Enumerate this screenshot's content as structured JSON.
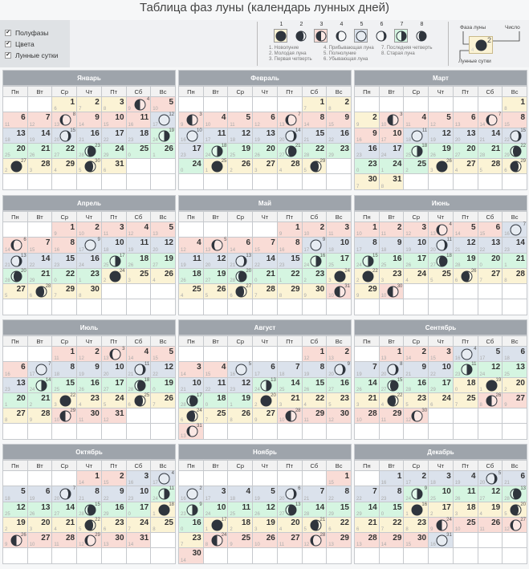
{
  "title": "Таблица фаз луны (календарь лунных дней)",
  "controls": {
    "checkboxes": [
      {
        "label": "Полуфазы",
        "checked": true
      },
      {
        "label": "Цвета",
        "checked": true
      },
      {
        "label": "Лунные сутки",
        "checked": true
      }
    ]
  },
  "legend": {
    "phases": [
      {
        "num": "1",
        "phase": 1,
        "box": "#fbf3d5"
      },
      {
        "num": "2",
        "phase": 2,
        "box": ""
      },
      {
        "num": "3",
        "phase": 3,
        "box": "#f9dcd6"
      },
      {
        "num": "4",
        "phase": 4,
        "box": ""
      },
      {
        "num": "5",
        "phase": 5,
        "box": "#dbe2ec"
      },
      {
        "num": "6",
        "phase": 6,
        "box": ""
      },
      {
        "num": "7",
        "phase": 7,
        "box": "#d5f5e1"
      },
      {
        "num": "8",
        "phase": 8,
        "box": ""
      }
    ],
    "labels": [
      "1. Новолуние",
      "4. Прибывающая луна",
      "7. Последняя четверть",
      "2. Молодая луна",
      "5. Полнолуние",
      "8. Старая луна",
      "3. Первая четверть",
      "6. Убывающая луна",
      ""
    ]
  },
  "key": {
    "phase_label": "Фаза луны",
    "number_label": "Число",
    "lunar_label": "Лунные сутки",
    "number": "2",
    "lunar": "4"
  },
  "colors": {
    "y": "#fbf3d5",
    "r": "#f9dcd6",
    "b": "#dbe2ec",
    "g": "#d5f5e1",
    "moon": "#2f353d"
  },
  "weekdays": [
    "Пн",
    "Вт",
    "Ср",
    "Чт",
    "Пт",
    "Сб",
    "Вс"
  ],
  "months": [
    {
      "name": "Январь",
      "start": 2,
      "colors": "yyyrrrrrrrrbbbbbbbggggggggyyyyy",
      "lunar": [
        6,
        7,
        8,
        9,
        10,
        11,
        12,
        13,
        14,
        15,
        16,
        17,
        18,
        19,
        20,
        21,
        22,
        23,
        24,
        25,
        26,
        27,
        28,
        29,
        0,
        1,
        2,
        3,
        4,
        5,
        6
      ],
      "phases": {
        "4": 3,
        "8": 4,
        "12": 5,
        "15": 6,
        "19": 7,
        "23": 8,
        "27": 1,
        "30": 2
      }
    },
    {
      "name": "Февраль",
      "start": 5,
      "colors": "yyrrrrrrrbbbbbbbbgggggggyyyyy",
      "lunar": [
        7,
        8,
        9,
        10,
        11,
        12,
        13,
        14,
        15,
        16,
        17,
        18,
        19,
        20,
        21,
        22,
        23,
        24,
        25,
        26,
        27,
        28,
        29,
        0,
        1,
        2,
        3,
        4,
        5
      ],
      "phases": {
        "3": 3,
        "7": 4,
        "10": 5,
        "14": 6,
        "18": 7,
        "21": 8,
        "25": 1,
        "29": 2
      }
    },
    {
      "name": "Март",
      "start": 6,
      "colors": "yyrrrrrrrrbbbbbbbggggggggyyyyyy",
      "lunar": [
        8,
        9,
        10,
        11,
        12,
        13,
        14,
        15,
        16,
        17,
        18,
        19,
        20,
        21,
        22,
        23,
        24,
        25,
        26,
        27,
        28,
        29,
        0,
        1,
        2,
        3,
        4,
        5,
        6,
        7,
        8
      ],
      "phases": {
        "3": 3,
        "7": 4,
        "11": 5,
        "15": 6,
        "18": 7,
        "22": 8,
        "26": 1,
        "29": 2
      }
    },
    {
      "name": "Апрель",
      "start": 2,
      "colors": "rrrrrrrrbbbbbbbbgggggggyyyyyyy",
      "lunar": [
        9,
        10,
        11,
        12,
        13,
        14,
        15,
        16,
        17,
        18,
        19,
        20,
        21,
        22,
        23,
        24,
        25,
        26,
        27,
        28,
        29,
        0,
        1,
        2,
        3,
        4,
        5,
        6,
        7,
        8
      ],
      "phases": {
        "6": 4,
        "9": 5,
        "13": 6,
        "17": 7,
        "20": 8,
        "24": 1,
        "28": 2
      }
    },
    {
      "name": "Май",
      "start": 4,
      "colors": "rrrrrrrrbbbbbbbggggggggyyyyyyyr",
      "lunar": [
        9,
        10,
        11,
        12,
        13,
        14,
        15,
        16,
        17,
        18,
        19,
        20,
        21,
        22,
        23,
        24,
        25,
        26,
        27,
        28,
        0,
        1,
        2,
        3,
        4,
        5,
        6,
        7,
        8,
        9,
        10
      ],
      "phases": {
        "5": 4,
        "9": 5,
        "13": 6,
        "16": 7,
        "20": 8,
        "24": 1,
        "27": 2,
        "31": 3
      }
    },
    {
      "name": "Июнь",
      "start": 0,
      "colors": "rrrrrrbbbbbbbbgggggggyyyyyyyyr",
      "lunar": [
        10,
        11,
        12,
        13,
        14,
        15,
        16,
        17,
        18,
        19,
        20,
        21,
        22,
        23,
        24,
        25,
        26,
        27,
        28,
        0,
        1,
        2,
        3,
        4,
        5,
        6,
        7,
        8,
        9,
        10
      ],
      "phases": {
        "4": 4,
        "7": 5,
        "11": 6,
        "15": 7,
        "18": 8,
        "22": 1,
        "26": 2,
        "30": 3
      }
    },
    {
      "name": "Июль",
      "start": 2,
      "colors": "rrrrrrbbbbbbbggggggggyyyyyyyrrr",
      "lunar": [
        11,
        12,
        13,
        14,
        15,
        16,
        17,
        18,
        19,
        20,
        21,
        22,
        23,
        24,
        25,
        26,
        27,
        28,
        0,
        1,
        2,
        3,
        4,
        5,
        6,
        7,
        8,
        9,
        10,
        11,
        12
      ],
      "phases": {
        "3": 4,
        "7": 5,
        "11": 6,
        "14": 7,
        "18": 8,
        "22": 1,
        "25": 2,
        "29": 3
      }
    },
    {
      "name": "Август",
      "start": 5,
      "colors": "rrrrbbbbbbbbgggggggyyyyyyyyrrrr",
      "lunar": [
        12,
        13,
        14,
        15,
        16,
        17,
        18,
        19,
        20,
        21,
        22,
        23,
        24,
        25,
        26,
        27,
        28,
        0,
        1,
        2,
        3,
        4,
        5,
        6,
        7,
        8,
        9,
        10,
        11,
        12,
        13
      ],
      "phases": {
        "5": 5,
        "9": 6,
        "13": 7,
        "17": 8,
        "20": 1,
        "24": 2,
        "28": 3,
        "31": 4
      }
    },
    {
      "name": "Сентябрь",
      "start": 1,
      "colors": "rrrbbbbbbbgggggggyyyyyyyyrrrrr",
      "lunar": [
        13,
        14,
        15,
        16,
        17,
        18,
        19,
        20,
        21,
        22,
        23,
        24,
        25,
        26,
        27,
        28,
        29,
        0,
        1,
        2,
        3,
        4,
        5,
        6,
        7,
        8,
        9,
        10,
        11,
        12
      ],
      "phases": {
        "4": 5,
        "8": 6,
        "11": 7,
        "15": 8,
        "19": 1,
        "22": 2,
        "26": 3,
        "30": 4
      }
    },
    {
      "name": "Октябрь",
      "start": 3,
      "colors": "rrbbbbbbbbgggggggyyyyyyyyrrrrrr",
      "lunar": [
        14,
        15,
        16,
        17,
        18,
        19,
        20,
        21,
        22,
        23,
        24,
        25,
        26,
        27,
        28,
        29,
        0,
        1,
        2,
        3,
        4,
        5,
        6,
        7,
        8,
        9,
        10,
        11,
        12,
        13,
        14
      ],
      "phases": {
        "4": 5,
        "7": 6,
        "11": 7,
        "15": 8,
        "18": 1,
        "22": 2,
        "26": 3,
        "29": 4
      }
    },
    {
      "name": "Ноябрь",
      "start": 6,
      "colors": "rbbbbbbbggggggggyyyyyyyrrrrrrr",
      "lunar": [
        15,
        16,
        17,
        18,
        19,
        20,
        21,
        22,
        23,
        24,
        25,
        26,
        27,
        28,
        29,
        0,
        1,
        2,
        3,
        4,
        5,
        6,
        7,
        8,
        9,
        10,
        11,
        12,
        13,
        14
      ],
      "phases": {
        "2": 5,
        "6": 6,
        "9": 7,
        "13": 8,
        "17": 1,
        "21": 2,
        "24": 3,
        "28": 4
      }
    },
    {
      "name": "Декабрь",
      "start": 1,
      "colors": "bbbbbbbbgggggggyyyyyyyyrrrrrrrb",
      "lunar": [
        16,
        17,
        18,
        19,
        20,
        21,
        22,
        23,
        24,
        25,
        26,
        27,
        28,
        29,
        0,
        1,
        2,
        3,
        4,
        5,
        6,
        7,
        8,
        9,
        10,
        11,
        12,
        13,
        14,
        15,
        16
      ],
      "phases": {
        "5": 6,
        "9": 7,
        "13": 8,
        "16": 1,
        "20": 2,
        "24": 3,
        "27": 4,
        "31": 5
      }
    }
  ]
}
